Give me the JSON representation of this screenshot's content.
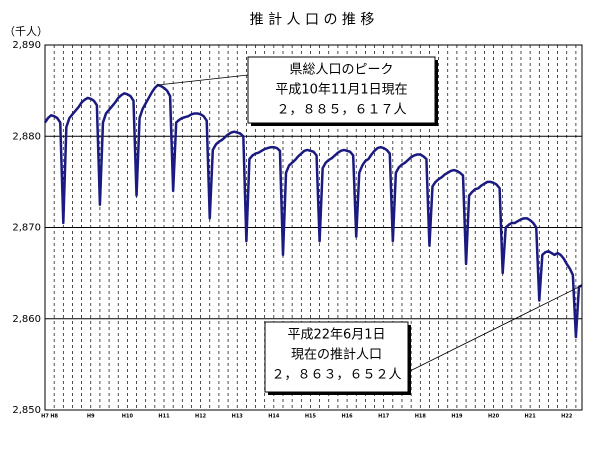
{
  "chart_data": {
    "type": "line",
    "title": "推 計 人 口 の 推 移",
    "y_unit_label": "（千人）",
    "color": "#1a1a80",
    "categories": [
      "H7",
      null,
      null,
      "H8",
      null,
      null,
      null,
      null,
      null,
      null,
      null,
      null,
      null,
      null,
      null,
      "H9",
      null,
      null,
      null,
      null,
      null,
      null,
      null,
      null,
      null,
      null,
      null,
      "H10",
      null,
      null,
      null,
      null,
      null,
      null,
      null,
      null,
      null,
      null,
      null,
      "H11",
      null,
      null,
      null,
      null,
      null,
      null,
      null,
      null,
      null,
      null,
      null,
      "H12",
      null,
      null,
      null,
      null,
      null,
      null,
      null,
      null,
      null,
      null,
      null,
      "H13",
      null,
      null,
      null,
      null,
      null,
      null,
      null,
      null,
      null,
      null,
      null,
      "H14",
      null,
      null,
      null,
      null,
      null,
      null,
      null,
      null,
      null,
      null,
      null,
      "H15",
      null,
      null,
      null,
      null,
      null,
      null,
      null,
      null,
      null,
      null,
      null,
      "H16",
      null,
      null,
      null,
      null,
      null,
      null,
      null,
      null,
      null,
      null,
      null,
      "H17",
      null,
      null,
      null,
      null,
      null,
      null,
      null,
      null,
      null,
      null,
      null,
      "H18",
      null,
      null,
      null,
      null,
      null,
      null,
      null,
      null,
      null,
      null,
      null,
      "H19",
      null,
      null,
      null,
      null,
      null,
      null,
      null,
      null,
      null,
      null,
      null,
      "H20",
      null,
      null,
      null,
      null,
      null,
      null,
      null,
      null,
      null,
      null,
      null,
      "H21",
      null,
      null,
      null,
      null,
      null,
      null,
      null,
      null,
      null,
      null,
      null,
      "H22",
      null,
      null,
      null,
      null,
      null
    ],
    "values": [
      2881.5,
      2882,
      2882.3,
      2882.2,
      2882,
      2881.5,
      2870.5,
      2881.0,
      2882.0,
      2882.4,
      2882.8,
      2883.2,
      2883.7,
      2884.0,
      2884.2,
      2884.1,
      2883.9,
      2883.4,
      2872.5,
      2881.5,
      2882.5,
      2882.9,
      2883.3,
      2883.7,
      2884.2,
      2884.5,
      2884.7,
      2884.6,
      2884.4,
      2883.9,
      2873.5,
      2882.0,
      2883.0,
      2883.6,
      2884.2,
      2884.8,
      2885.3,
      2885.617,
      2885.5,
      2885.3,
      2885.0,
      2884.4,
      2874.0,
      2881.5,
      2881.8,
      2882.0,
      2882.1,
      2882.2,
      2882.4,
      2882.5,
      2882.5,
      2882.4,
      2882.2,
      2881.7,
      2871.0,
      2878.5,
      2879.1,
      2879.4,
      2879.6,
      2879.9,
      2880.2,
      2880.4,
      2880.5,
      2880.4,
      2880.3,
      2880.0,
      2868.5,
      2877.5,
      2877.9,
      2878.1,
      2878.2,
      2878.4,
      2878.6,
      2878.7,
      2878.8,
      2878.8,
      2878.7,
      2878.4,
      2867.0,
      2876.0,
      2876.8,
      2877.1,
      2877.4,
      2877.8,
      2878.1,
      2878.4,
      2878.5,
      2878.4,
      2878.3,
      2877.9,
      2868.5,
      2876.5,
      2877.1,
      2877.4,
      2877.6,
      2877.9,
      2878.2,
      2878.4,
      2878.5,
      2878.4,
      2878.3,
      2877.9,
      2869.0,
      2876.0,
      2876.8,
      2877.3,
      2877.5,
      2878.0,
      2878.4,
      2878.7,
      2878.8,
      2878.7,
      2878.5,
      2878.1,
      2868.5,
      2876.0,
      2876.6,
      2876.9,
      2877.1,
      2877.4,
      2877.7,
      2877.9,
      2878.0,
      2878.0,
      2877.8,
      2877.5,
      2868.0,
      2874.5,
      2875.0,
      2875.3,
      2875.5,
      2875.8,
      2876.0,
      2876.2,
      2876.3,
      2876.2,
      2876.0,
      2875.7,
      2866.0,
      2873.5,
      2873.9,
      2874.2,
      2874.3,
      2874.6,
      2874.8,
      2875.0,
      2875.0,
      2874.9,
      2874.7,
      2874.3,
      2865.0,
      2870.0,
      2870.3,
      2870.5,
      2870.5,
      2870.7,
      2870.9,
      2871.0,
      2871.0,
      2870.8,
      2870.5,
      2870.0,
      2862.0,
      2867.0,
      2867.3,
      2867.4,
      2867.2,
      2867.0,
      2867.2,
      2867.0,
      2866.6,
      2866.0,
      2865.5,
      2864.8,
      2858.0,
      2863.5,
      2863.652
    ],
    "ylim": [
      2850,
      2890
    ],
    "yticks": [
      {
        "value": 2850,
        "label": "2,850"
      },
      {
        "value": 2860,
        "label": "2,860"
      },
      {
        "value": 2870,
        "label": "2,870"
      },
      {
        "value": 2880,
        "label": "2,880"
      },
      {
        "value": 2890,
        "label": "2,890"
      }
    ],
    "grid": true,
    "annotations": [
      {
        "lines": [
          "県総人口のピーク",
          "平成10年11月1日現在",
          "２，８８５，６１７人"
        ],
        "point": 37
      },
      {
        "lines": [
          "平成22年6月1日",
          "現在の推計人口",
          "２，８６３，６５２人"
        ],
        "point": 176
      }
    ]
  }
}
